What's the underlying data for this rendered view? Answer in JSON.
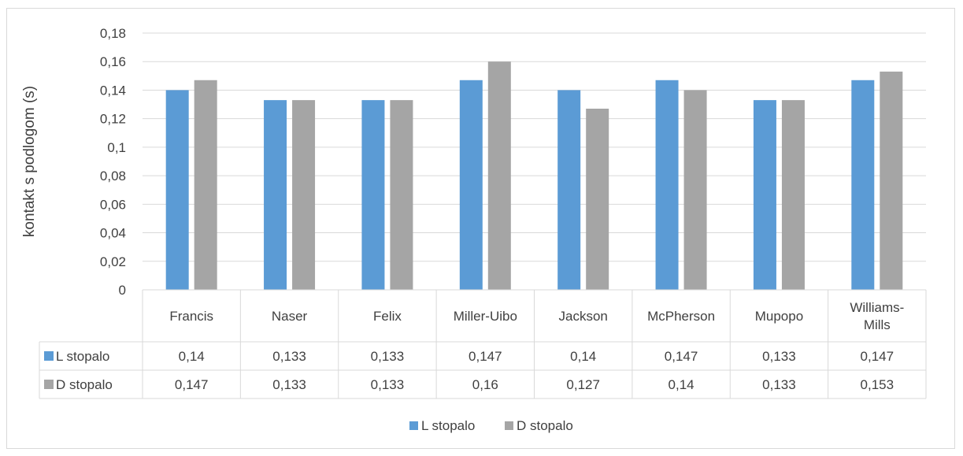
{
  "chart_data": {
    "type": "bar",
    "title": "",
    "xlabel": "",
    "ylabel": "kontakt s podlogom (s)",
    "categories": [
      "Francis",
      "Naser",
      "Felix",
      "Miller-Uibo",
      "Jackson",
      "McPherson",
      "Mupopo",
      "Williams-Mills"
    ],
    "category_lines": [
      [
        "Francis"
      ],
      [
        "Naser"
      ],
      [
        "Felix"
      ],
      [
        "Miller-Uibo"
      ],
      [
        "Jackson"
      ],
      [
        "McPherson"
      ],
      [
        "Mupopo"
      ],
      [
        "Williams-",
        "Mills"
      ]
    ],
    "series": [
      {
        "name": "L stopalo",
        "color": "#5b9bd5",
        "values": [
          0.14,
          0.133,
          0.133,
          0.147,
          0.14,
          0.147,
          0.133,
          0.147
        ],
        "labels": [
          "0,14",
          "0,133",
          "0,133",
          "0,147",
          "0,14",
          "0,147",
          "0,133",
          "0,147"
        ]
      },
      {
        "name": "D stopalo",
        "color": "#a5a5a5",
        "values": [
          0.147,
          0.133,
          0.133,
          0.16,
          0.127,
          0.14,
          0.133,
          0.153
        ],
        "labels": [
          "0,147",
          "0,133",
          "0,133",
          "0,16",
          "0,127",
          "0,14",
          "0,133",
          "0,153"
        ]
      }
    ],
    "ylim": [
      0,
      0.18
    ],
    "yticks": [
      0,
      0.02,
      0.04,
      0.06,
      0.08,
      0.1,
      0.12,
      0.14,
      0.16,
      0.18
    ],
    "ytick_labels": [
      "0",
      "0,02",
      "0,04",
      "0,06",
      "0,08",
      "0,1",
      "0,12",
      "0,14",
      "0,16",
      "0,18"
    ],
    "grid": true,
    "data_table": true,
    "legend_position": "bottom"
  }
}
